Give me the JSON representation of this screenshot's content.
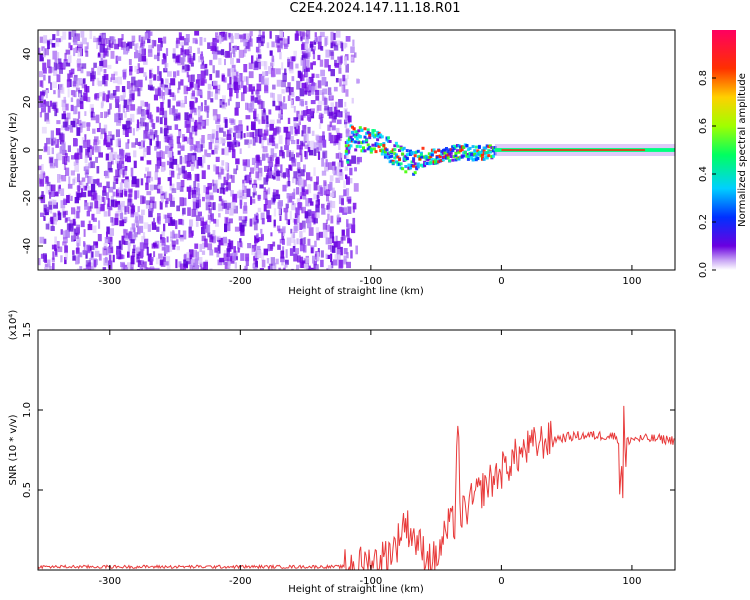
{
  "title": "C2E4.2024.147.11.18.R01",
  "colorbar": {
    "label": "Normalized spectral amplitude",
    "ticks": [
      "0.0",
      "0.2",
      "0.4",
      "0.6",
      "0.8"
    ],
    "tick_values": [
      0.0,
      0.2,
      0.4,
      0.6,
      0.8
    ],
    "range": [
      0,
      1
    ]
  },
  "chart_data": [
    {
      "type": "heatmap",
      "xlabel": "Height of straight line (km)",
      "ylabel": "Frequency (Hz)",
      "xlim": [
        -355,
        133
      ],
      "ylim": [
        -50,
        50
      ],
      "xticks": [
        -300,
        -200,
        -100,
        0,
        100
      ],
      "xtick_labels": [
        "-300",
        "-200",
        "-100",
        "0",
        "100"
      ],
      "yticks": [
        -40,
        -20,
        0,
        20,
        40
      ],
      "ytick_labels": [
        "-40",
        "-20",
        "0",
        "20",
        "40"
      ],
      "noise_region_x": [
        -355,
        -118
      ],
      "center_line": [
        {
          "x": -118,
          "y": 6
        },
        {
          "x": -105,
          "y": 5
        },
        {
          "x": -95,
          "y": 3
        },
        {
          "x": -85,
          "y": 0
        },
        {
          "x": -78,
          "y": -3
        },
        {
          "x": -70,
          "y": -5
        },
        {
          "x": -60,
          "y": -3
        },
        {
          "x": -50,
          "y": -2
        },
        {
          "x": -40,
          "y": -1
        },
        {
          "x": -30,
          "y": 0
        },
        {
          "x": -20,
          "y": -1
        },
        {
          "x": -10,
          "y": 0
        },
        {
          "x": 0,
          "y": 0
        },
        {
          "x": 133,
          "y": 0
        }
      ],
      "grid": false
    },
    {
      "type": "line",
      "xlabel": "Height of straight line (km)",
      "ylabel": "SNR (10 * v/v)",
      "yscale_label": "(x10⁴)",
      "xlim": [
        -355,
        133
      ],
      "ylim": [
        0,
        1.5
      ],
      "xticks": [
        -300,
        -200,
        -100,
        0,
        100
      ],
      "xtick_labels": [
        "-300",
        "-200",
        "-100",
        "0",
        "100"
      ],
      "yticks": [
        0.5,
        1.0,
        1.5
      ],
      "ytick_labels": [
        "0.5",
        "1.0",
        "1.5"
      ],
      "series": [
        {
          "color": "#e83b3b",
          "x": [
            -355,
            -300,
            -200,
            -120,
            -110,
            -100,
            -90,
            -80,
            -75,
            -70,
            -65,
            -60,
            -55,
            -50,
            -45,
            -40,
            -35,
            -30,
            -25,
            -20,
            -15,
            -10,
            -5,
            0,
            10,
            20,
            30,
            40,
            50,
            60,
            70,
            80,
            85,
            90,
            92,
            95,
            100,
            110,
            120,
            133
          ],
          "y": [
            0.02,
            0.02,
            0.02,
            0.02,
            0.03,
            0.05,
            0.08,
            0.16,
            0.3,
            0.25,
            0.18,
            0.12,
            0.08,
            0.06,
            0.18,
            0.28,
            0.3,
            0.36,
            0.4,
            0.46,
            0.5,
            0.54,
            0.58,
            0.62,
            0.7,
            0.76,
            0.8,
            0.82,
            0.83,
            0.84,
            0.84,
            0.84,
            0.84,
            0.82,
            0.7,
            0.8,
            0.82,
            0.82,
            0.82,
            0.81
          ]
        }
      ],
      "grid": false
    }
  ]
}
